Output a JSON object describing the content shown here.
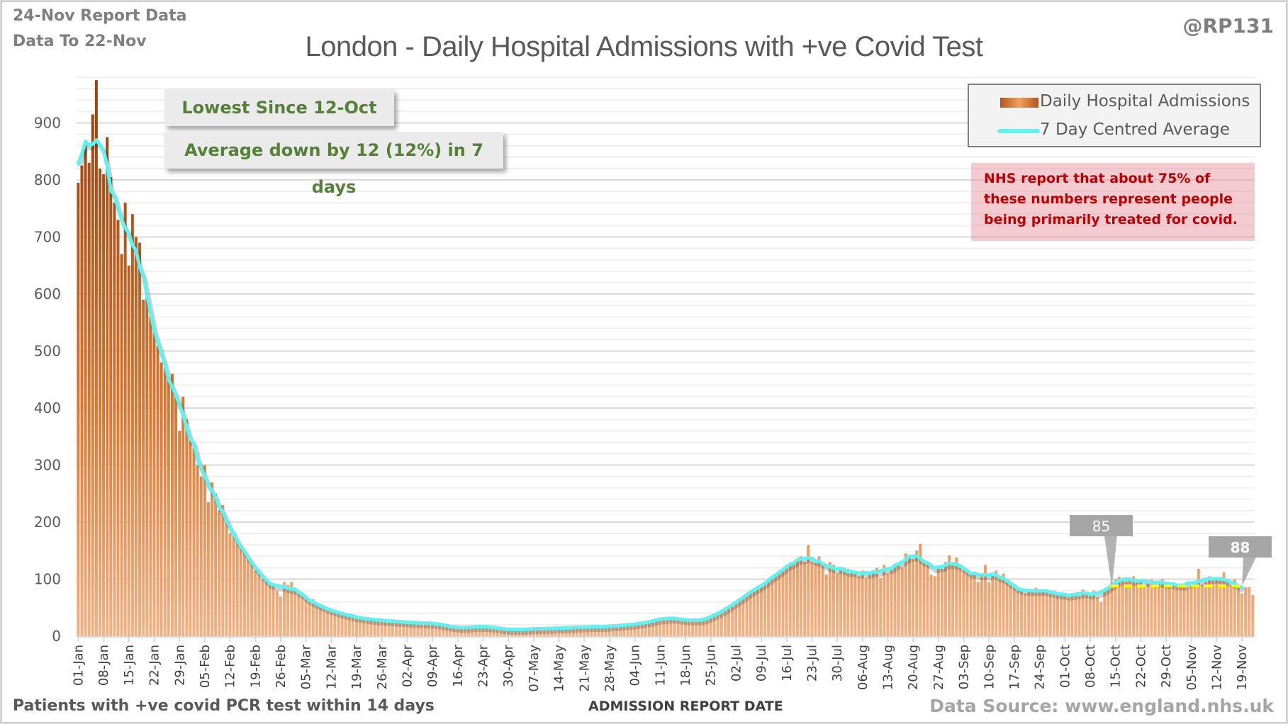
{
  "header": {
    "report_date": "24-Nov Report Data",
    "data_to": "Data To 22-Nov",
    "handle": "@RP131",
    "title": "London - Daily Hospital Admissions with +ve Covid Test"
  },
  "annotations": {
    "lowest_since": "Lowest Since 12-Oct",
    "average_change": "Average down by 12 (12%) in 7 days",
    "nhs_note": "NHS report that about 75% of these numbers represent people being primarily treated for covid."
  },
  "callouts": [
    {
      "label": "85",
      "date": "14-Oct"
    },
    {
      "label": "88",
      "date": "19-Nov"
    }
  ],
  "footer": {
    "left": "Patients with +ve covid PCR test within 14 days",
    "xlabel": "ADMISSION  REPORT DATE",
    "source": "Data Source: www.england.nhs.uk"
  },
  "colors": {
    "bar_dark": "#9c4511",
    "bar_light": "#f4b183",
    "average": "#5ef2f2",
    "reference_line": "#ffff00",
    "annotation_text": "#548235",
    "note_text": "#c00000"
  },
  "chart_data": {
    "type": "bar",
    "title": "London - Daily Hospital Admissions with +ve Covid Test",
    "xlabel": "ADMISSION  REPORT DATE",
    "ylabel": "",
    "ylim": [
      0,
      980
    ],
    "yticks": [
      0,
      100,
      200,
      300,
      400,
      500,
      600,
      700,
      800,
      900
    ],
    "grid": true,
    "start_date": "01-Jan",
    "end_date": "22-Nov",
    "xtick_labels": [
      "01-Jan",
      "08-Jan",
      "15-Jan",
      "22-Jan",
      "29-Jan",
      "05-Feb",
      "12-Feb",
      "19-Feb",
      "26-Feb",
      "05-Mar",
      "12-Mar",
      "19-Mar",
      "26-Mar",
      "02-Apr",
      "09-Apr",
      "16-Apr",
      "23-Apr",
      "30-Apr",
      "07-May",
      "14-May",
      "21-May",
      "28-May",
      "04-Jun",
      "11-Jun",
      "18-Jun",
      "25-Jun",
      "02-Jul",
      "09-Jul",
      "16-Jul",
      "23-Jul",
      "30-Jul",
      "06-Aug",
      "13-Aug",
      "20-Aug",
      "27-Aug",
      "03-Sep",
      "10-Sep",
      "17-Sep",
      "24-Sep",
      "01-Oct",
      "08-Oct",
      "15-Oct",
      "22-Oct",
      "29-Oct",
      "05-Nov",
      "12-Nov",
      "19-Nov"
    ],
    "legend": [
      "Daily Hospital Admissions",
      "7 Day Centred Average"
    ],
    "legend_position": "top-right",
    "series": [
      {
        "name": "Daily Hospital Admissions",
        "values": [
          795,
          825,
          865,
          830,
          915,
          975,
          820,
          810,
          875,
          805,
          760,
          730,
          670,
          760,
          650,
          740,
          700,
          690,
          590,
          600,
          560,
          540,
          510,
          480,
          470,
          450,
          460,
          420,
          360,
          420,
          380,
          350,
          330,
          300,
          280,
          300,
          235,
          270,
          250,
          220,
          230,
          200,
          180,
          175,
          165,
          160,
          150,
          140,
          130,
          115,
          110,
          100,
          100,
          95,
          90,
          80,
          70,
          95,
          90,
          95,
          85,
          75,
          70,
          65,
          60,
          65,
          55,
          52,
          50,
          48,
          45,
          42,
          40,
          42,
          38,
          36,
          34,
          33,
          32,
          31,
          30,
          30,
          29,
          28,
          28,
          27,
          27,
          26,
          26,
          25,
          25,
          25,
          24,
          24,
          23,
          23,
          22,
          22,
          24,
          23,
          22,
          20,
          18,
          17,
          15,
          14,
          14,
          15,
          15,
          16,
          17,
          17,
          19,
          17,
          16,
          15,
          14,
          13,
          13,
          12,
          11,
          10,
          12,
          12,
          13,
          12,
          12,
          13,
          14,
          14,
          13,
          13,
          14,
          14,
          14,
          15,
          15,
          14,
          15,
          16,
          18,
          17,
          16,
          15,
          16,
          17,
          18,
          17,
          17,
          18,
          19,
          19,
          20,
          21,
          22,
          21,
          20,
          24,
          27,
          26,
          28,
          30,
          33,
          33,
          32,
          31,
          30,
          30,
          29,
          28,
          27,
          26,
          28,
          28,
          30,
          32,
          35,
          40,
          45,
          50,
          48,
          52,
          60,
          62,
          70,
          75,
          80,
          78,
          85,
          90,
          92,
          95,
          100,
          110,
          115,
          118,
          122,
          125,
          128,
          135,
          140,
          130,
          160,
          130,
          128,
          140,
          125,
          108,
          130,
          125,
          110,
          115,
          120,
          118,
          112,
          110,
          105,
          115,
          102,
          112,
          115,
          120,
          102,
          125,
          110,
          118,
          125,
          128,
          120,
          145,
          140,
          135,
          150,
          162,
          130,
          125,
          108,
          105,
          120,
          118,
          130,
          142,
          125,
          138,
          120,
          115,
          112,
          112,
          110,
          95,
          105,
          125,
          95,
          108,
          115,
          105,
          110,
          95,
          92,
          85,
          80,
          80,
          75,
          78,
          80,
          85,
          80,
          80,
          78,
          76,
          80,
          75,
          72,
          70,
          68,
          75,
          72,
          70,
          82,
          78,
          75,
          80,
          68,
          60,
          80,
          85,
          95,
          100,
          104,
          100,
          95,
          98,
          105,
          100,
          95,
          88,
          95,
          100,
          92,
          95,
          100,
          88,
          92,
          90,
          88,
          92,
          90,
          85,
          88,
          92,
          118,
          90,
          95,
          105,
          100,
          98,
          102,
          112,
          95,
          90,
          100,
          85,
          75,
          86,
          86,
          72
        ]
      },
      {
        "name": "7 Day Centred Average",
        "derived_from": "Daily Hospital Admissions",
        "window": 7
      }
    ],
    "reference_line": {
      "value": 88,
      "from": "14-Oct",
      "to": "19-Nov"
    }
  }
}
